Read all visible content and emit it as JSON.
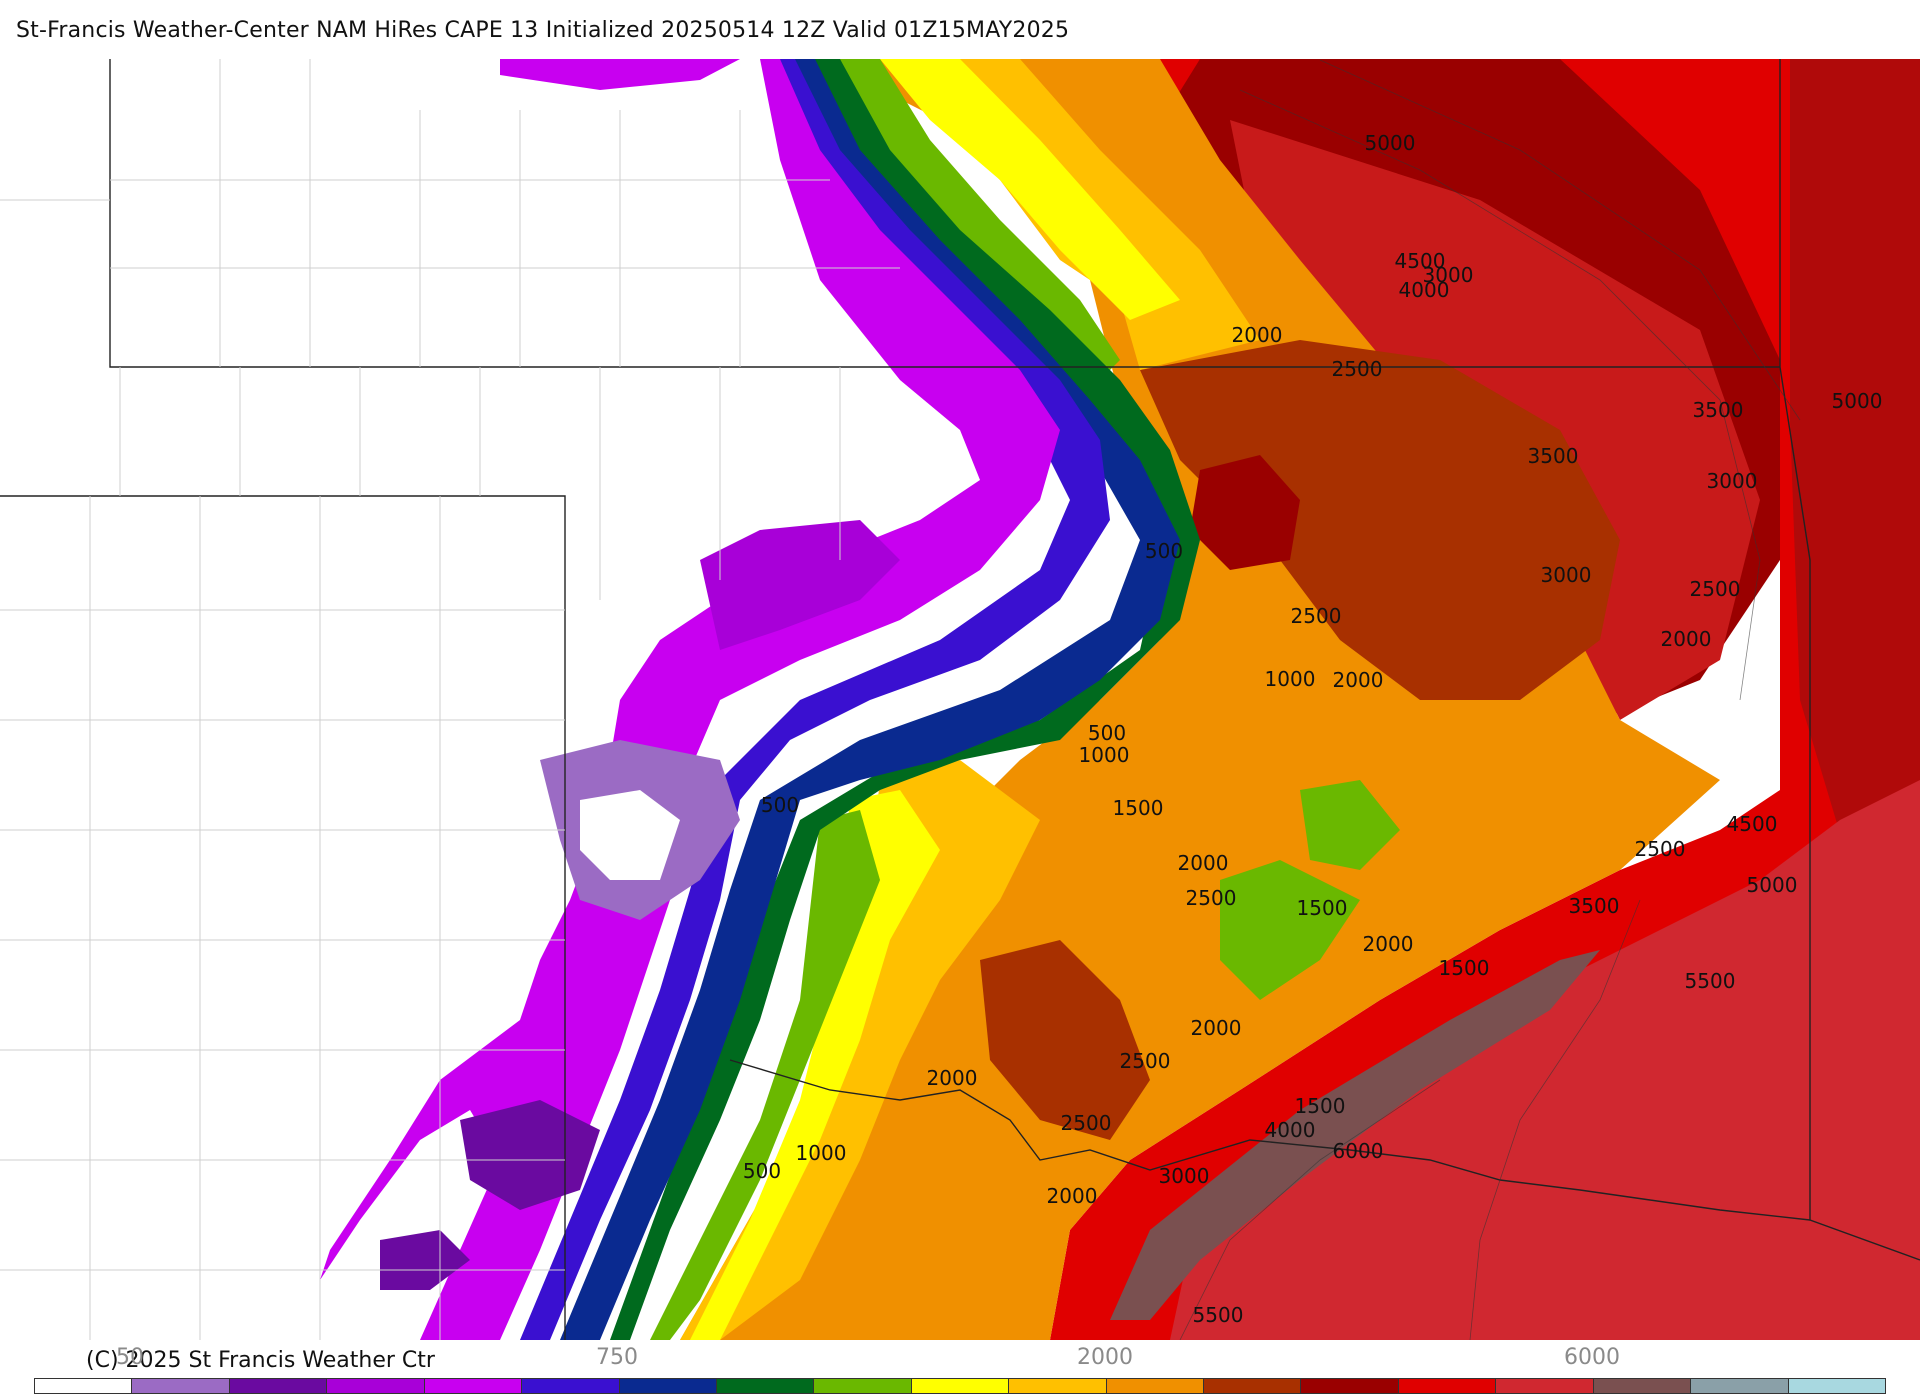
{
  "title": "St-Francis Weather-Center NAM HiRes CAPE  13 Initialized 20250514 12Z Valid 01Z15MAY2025",
  "copyright": "(C) 2025 St Francis Weather Ctr",
  "legend": {
    "tick_labels": [
      "50",
      "750",
      "2000",
      "6000"
    ],
    "colors": [
      "#ffffff",
      "#9b6bc4",
      "#6a0aa0",
      "#a800d8",
      "#c800f0",
      "#3a10d0",
      "#0a2a90",
      "#006a1e",
      "#6ab800",
      "#ffff00",
      "#ffc000",
      "#f09000",
      "#a83000",
      "#9a0000",
      "#e00000",
      "#d02830",
      "#7a5050",
      "#8aa0a8",
      "#a8d8e0"
    ]
  },
  "map": {
    "contour_labels": [
      {
        "text": "5000"
      },
      {
        "text": "4500"
      },
      {
        "text": "4000"
      },
      {
        "text": "3000"
      },
      {
        "text": "2000"
      },
      {
        "text": "2500"
      },
      {
        "text": "5000"
      },
      {
        "text": "3500"
      },
      {
        "text": "3500"
      },
      {
        "text": "3000"
      },
      {
        "text": "500"
      },
      {
        "text": "2500"
      },
      {
        "text": "3000"
      },
      {
        "text": "2500"
      },
      {
        "text": "2000"
      },
      {
        "text": "1000"
      },
      {
        "text": "2000"
      },
      {
        "text": "500"
      },
      {
        "text": "1000"
      },
      {
        "text": "500"
      },
      {
        "text": "1500"
      },
      {
        "text": "2000"
      },
      {
        "text": "2500"
      },
      {
        "text": "4500"
      },
      {
        "text": "2500"
      },
      {
        "text": "5000"
      },
      {
        "text": "3500"
      },
      {
        "text": "1500"
      },
      {
        "text": "2000"
      },
      {
        "text": "1500"
      },
      {
        "text": "5500"
      },
      {
        "text": "2000"
      },
      {
        "text": "2500"
      },
      {
        "text": "2000"
      },
      {
        "text": "1500"
      },
      {
        "text": "2500"
      },
      {
        "text": "4000"
      },
      {
        "text": "6000"
      },
      {
        "text": "1000"
      },
      {
        "text": "500"
      },
      {
        "text": "3000"
      },
      {
        "text": "2000"
      },
      {
        "text": "5500"
      }
    ]
  }
}
